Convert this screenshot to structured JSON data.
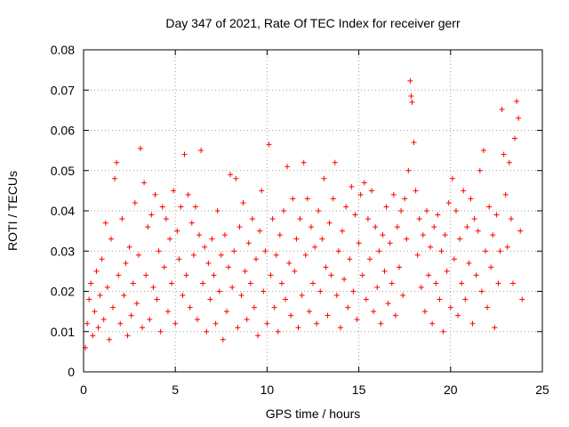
{
  "chart_data": {
    "type": "scatter",
    "title": "Day 347 of 2021, Rate Of TEC Index for receiver gerr",
    "xlabel": "GPS time / hours",
    "ylabel": "ROTI / TECUs",
    "xlim": [
      0,
      25
    ],
    "ylim": [
      0,
      0.08
    ],
    "x_ticks": [
      0,
      5,
      10,
      15,
      20,
      25
    ],
    "y_ticks": [
      0,
      0.01,
      0.02,
      0.03,
      0.04,
      0.05,
      0.06,
      0.07,
      0.08
    ],
    "x_tick_labels": [
      "0",
      "5",
      "10",
      "15",
      "20",
      "25"
    ],
    "y_tick_labels": [
      "0",
      "0.01",
      "0.02",
      "0.03",
      "0.04",
      "0.05",
      "0.06",
      "0.07",
      "0.08"
    ],
    "grid": true,
    "marker": "plus",
    "color": "#ff0000",
    "series": [
      {
        "name": "ROTI",
        "points": [
          [
            0.1,
            0.006
          ],
          [
            0.2,
            0.012
          ],
          [
            0.3,
            0.018
          ],
          [
            0.4,
            0.022
          ],
          [
            0.5,
            0.009
          ],
          [
            0.6,
            0.015
          ],
          [
            0.7,
            0.025
          ],
          [
            0.8,
            0.011
          ],
          [
            0.9,
            0.019
          ],
          [
            1.0,
            0.028
          ],
          [
            1.1,
            0.013
          ],
          [
            1.2,
            0.037
          ],
          [
            1.3,
            0.021
          ],
          [
            1.4,
            0.008
          ],
          [
            1.5,
            0.033
          ],
          [
            1.6,
            0.016
          ],
          [
            1.7,
            0.048
          ],
          [
            1.8,
            0.052
          ],
          [
            1.9,
            0.024
          ],
          [
            2.0,
            0.012
          ],
          [
            2.1,
            0.038
          ],
          [
            2.2,
            0.019
          ],
          [
            2.3,
            0.027
          ],
          [
            2.4,
            0.009
          ],
          [
            2.5,
            0.031
          ],
          [
            2.6,
            0.014
          ],
          [
            2.7,
            0.022
          ],
          [
            2.8,
            0.042
          ],
          [
            2.9,
            0.017
          ],
          [
            3.0,
            0.029
          ],
          [
            3.1,
            0.0555
          ],
          [
            3.2,
            0.011
          ],
          [
            3.3,
            0.047
          ],
          [
            3.4,
            0.024
          ],
          [
            3.5,
            0.036
          ],
          [
            3.6,
            0.013
          ],
          [
            3.7,
            0.039
          ],
          [
            3.8,
            0.021
          ],
          [
            3.9,
            0.044
          ],
          [
            4.0,
            0.018
          ],
          [
            4.1,
            0.03
          ],
          [
            4.2,
            0.01
          ],
          [
            4.3,
            0.041
          ],
          [
            4.4,
            0.026
          ],
          [
            4.5,
            0.038
          ],
          [
            4.6,
            0.015
          ],
          [
            4.7,
            0.033
          ],
          [
            4.8,
            0.022
          ],
          [
            4.9,
            0.045
          ],
          [
            5.0,
            0.012
          ],
          [
            5.1,
            0.035
          ],
          [
            5.2,
            0.028
          ],
          [
            5.3,
            0.041
          ],
          [
            5.4,
            0.019
          ],
          [
            5.5,
            0.054
          ],
          [
            5.6,
            0.024
          ],
          [
            5.7,
            0.044
          ],
          [
            5.8,
            0.016
          ],
          [
            5.9,
            0.037
          ],
          [
            6.0,
            0.029
          ],
          [
            6.1,
            0.041
          ],
          [
            6.2,
            0.013
          ],
          [
            6.3,
            0.034
          ],
          [
            6.4,
            0.055
          ],
          [
            6.5,
            0.022
          ],
          [
            6.6,
            0.031
          ],
          [
            6.7,
            0.01
          ],
          [
            6.8,
            0.027
          ],
          [
            6.9,
            0.018
          ],
          [
            7.0,
            0.033
          ],
          [
            7.1,
            0.024
          ],
          [
            7.2,
            0.012
          ],
          [
            7.3,
            0.04
          ],
          [
            7.4,
            0.02
          ],
          [
            7.5,
            0.029
          ],
          [
            7.6,
            0.008
          ],
          [
            7.7,
            0.034
          ],
          [
            7.8,
            0.015
          ],
          [
            7.9,
            0.026
          ],
          [
            8.0,
            0.049
          ],
          [
            8.1,
            0.021
          ],
          [
            8.2,
            0.03
          ],
          [
            8.3,
            0.048
          ],
          [
            8.4,
            0.011
          ],
          [
            8.5,
            0.036
          ],
          [
            8.6,
            0.019
          ],
          [
            8.7,
            0.042
          ],
          [
            8.8,
            0.025
          ],
          [
            8.9,
            0.013
          ],
          [
            9.0,
            0.032
          ],
          [
            9.1,
            0.022
          ],
          [
            9.2,
            0.038
          ],
          [
            9.3,
            0.016
          ],
          [
            9.4,
            0.028
          ],
          [
            9.5,
            0.009
          ],
          [
            9.6,
            0.035
          ],
          [
            9.7,
            0.045
          ],
          [
            9.8,
            0.02
          ],
          [
            9.9,
            0.03
          ],
          [
            10.0,
            0.012
          ],
          [
            10.1,
            0.0565
          ],
          [
            10.2,
            0.024
          ],
          [
            10.3,
            0.038
          ],
          [
            10.4,
            0.016
          ],
          [
            10.5,
            0.029
          ],
          [
            10.6,
            0.01
          ],
          [
            10.7,
            0.034
          ],
          [
            10.8,
            0.022
          ],
          [
            10.9,
            0.04
          ],
          [
            11.0,
            0.018
          ],
          [
            11.1,
            0.051
          ],
          [
            11.2,
            0.027
          ],
          [
            11.3,
            0.014
          ],
          [
            11.4,
            0.043
          ],
          [
            11.5,
            0.025
          ],
          [
            11.6,
            0.033
          ],
          [
            11.7,
            0.011
          ],
          [
            11.8,
            0.038
          ],
          [
            11.9,
            0.019
          ],
          [
            12.0,
            0.052
          ],
          [
            12.1,
            0.029
          ],
          [
            12.2,
            0.043
          ],
          [
            12.3,
            0.015
          ],
          [
            12.4,
            0.036
          ],
          [
            12.5,
            0.022
          ],
          [
            12.6,
            0.031
          ],
          [
            12.7,
            0.012
          ],
          [
            12.8,
            0.04
          ],
          [
            12.9,
            0.02
          ],
          [
            13.0,
            0.033
          ],
          [
            13.1,
            0.048
          ],
          [
            13.2,
            0.026
          ],
          [
            13.3,
            0.014
          ],
          [
            13.4,
            0.037
          ],
          [
            13.5,
            0.024
          ],
          [
            13.6,
            0.043
          ],
          [
            13.7,
            0.052
          ],
          [
            13.8,
            0.019
          ],
          [
            13.9,
            0.03
          ],
          [
            14.0,
            0.011
          ],
          [
            14.1,
            0.035
          ],
          [
            14.2,
            0.023
          ],
          [
            14.3,
            0.041
          ],
          [
            14.4,
            0.016
          ],
          [
            14.5,
            0.028
          ],
          [
            14.6,
            0.046
          ],
          [
            14.7,
            0.02
          ],
          [
            14.8,
            0.039
          ],
          [
            14.9,
            0.013
          ],
          [
            15.0,
            0.032
          ],
          [
            15.1,
            0.044
          ],
          [
            15.2,
            0.024
          ],
          [
            15.3,
            0.047
          ],
          [
            15.4,
            0.018
          ],
          [
            15.5,
            0.038
          ],
          [
            15.6,
            0.028
          ],
          [
            15.7,
            0.045
          ],
          [
            15.8,
            0.015
          ],
          [
            15.9,
            0.036
          ],
          [
            16.0,
            0.021
          ],
          [
            16.1,
            0.03
          ],
          [
            16.2,
            0.012
          ],
          [
            16.3,
            0.034
          ],
          [
            16.4,
            0.025
          ],
          [
            16.5,
            0.041
          ],
          [
            16.6,
            0.017
          ],
          [
            16.7,
            0.032
          ],
          [
            16.8,
            0.022
          ],
          [
            16.9,
            0.044
          ],
          [
            17.0,
            0.014
          ],
          [
            17.1,
            0.036
          ],
          [
            17.2,
            0.026
          ],
          [
            17.3,
            0.04
          ],
          [
            17.4,
            0.019
          ],
          [
            17.5,
            0.043
          ],
          [
            17.6,
            0.033
          ],
          [
            17.7,
            0.05
          ],
          [
            17.8,
            0.0723
          ],
          [
            17.85,
            0.0685
          ],
          [
            17.9,
            0.067
          ],
          [
            18.0,
            0.057
          ],
          [
            18.1,
            0.045
          ],
          [
            18.2,
            0.029
          ],
          [
            18.3,
            0.038
          ],
          [
            18.4,
            0.021
          ],
          [
            18.5,
            0.034
          ],
          [
            18.6,
            0.015
          ],
          [
            18.7,
            0.04
          ],
          [
            18.8,
            0.024
          ],
          [
            18.9,
            0.031
          ],
          [
            19.0,
            0.012
          ],
          [
            19.1,
            0.036
          ],
          [
            19.2,
            0.022
          ],
          [
            19.3,
            0.039
          ],
          [
            19.4,
            0.018
          ],
          [
            19.5,
            0.03
          ],
          [
            19.6,
            0.01
          ],
          [
            19.7,
            0.034
          ],
          [
            19.8,
            0.025
          ],
          [
            19.9,
            0.042
          ],
          [
            20.0,
            0.016
          ],
          [
            20.1,
            0.048
          ],
          [
            20.2,
            0.028
          ],
          [
            20.3,
            0.04
          ],
          [
            20.4,
            0.014
          ],
          [
            20.5,
            0.033
          ],
          [
            20.6,
            0.022
          ],
          [
            20.7,
            0.045
          ],
          [
            20.8,
            0.018
          ],
          [
            20.9,
            0.036
          ],
          [
            21.0,
            0.027
          ],
          [
            21.1,
            0.043
          ],
          [
            21.2,
            0.012
          ],
          [
            21.3,
            0.038
          ],
          [
            21.4,
            0.024
          ],
          [
            21.5,
            0.035
          ],
          [
            21.6,
            0.05
          ],
          [
            21.7,
            0.02
          ],
          [
            21.8,
            0.055
          ],
          [
            21.9,
            0.03
          ],
          [
            22.0,
            0.016
          ],
          [
            22.1,
            0.041
          ],
          [
            22.2,
            0.026
          ],
          [
            22.3,
            0.034
          ],
          [
            22.4,
            0.011
          ],
          [
            22.5,
            0.039
          ],
          [
            22.6,
            0.022
          ],
          [
            22.7,
            0.03
          ],
          [
            22.8,
            0.0652
          ],
          [
            22.9,
            0.054
          ],
          [
            23.0,
            0.044
          ],
          [
            23.1,
            0.031
          ],
          [
            23.2,
            0.052
          ],
          [
            23.3,
            0.038
          ],
          [
            23.4,
            0.022
          ],
          [
            23.5,
            0.058
          ],
          [
            23.6,
            0.0672
          ],
          [
            23.7,
            0.063
          ],
          [
            23.8,
            0.035
          ],
          [
            23.9,
            0.018
          ]
        ]
      }
    ]
  }
}
